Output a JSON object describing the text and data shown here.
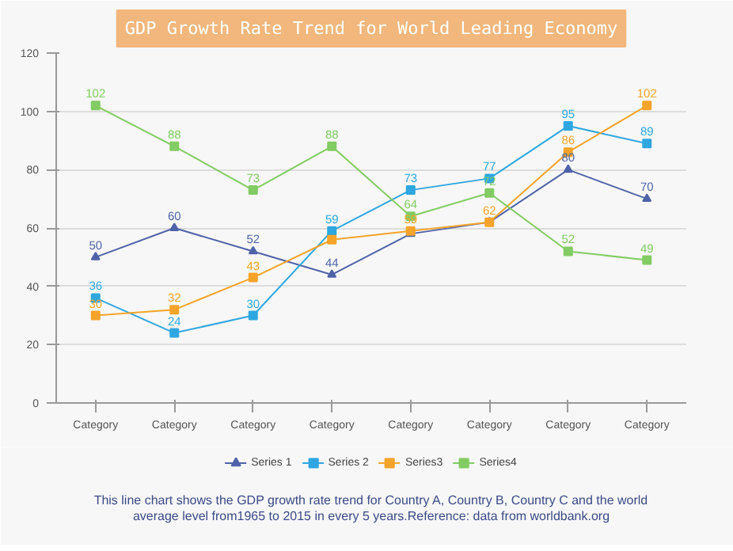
{
  "chart_data": {
    "type": "line",
    "title": "GDP Growth Rate Trend for World Leading Economy",
    "categories": [
      "Category",
      "Category",
      "Category",
      "Category",
      "Category",
      "Category",
      "Category",
      "Category"
    ],
    "series": [
      {
        "name": "Series 1",
        "color": "#4f63a8",
        "marker": "triangle",
        "values": [
          50,
          60,
          52,
          44,
          58,
          62,
          80,
          70
        ],
        "value_labels": [
          "50",
          "60",
          "52",
          "44",
          null,
          null,
          "80",
          "70"
        ]
      },
      {
        "name": "Series 2",
        "color": "#2ea7e0",
        "marker": "square",
        "values": [
          36,
          24,
          30,
          59,
          73,
          77,
          95,
          89
        ],
        "value_labels": [
          "36",
          "24",
          "30",
          "59",
          "73",
          "77",
          "95",
          "89"
        ]
      },
      {
        "name": "Series3",
        "color": "#f5a42a",
        "marker": "square",
        "values": [
          30,
          32,
          43,
          56,
          59,
          62,
          86,
          102
        ],
        "value_labels": [
          "30",
          "32",
          "43",
          null,
          "59",
          "62",
          "86",
          "102"
        ]
      },
      {
        "name": "Series4",
        "color": "#82cc63",
        "marker": "square",
        "values": [
          102,
          88,
          73,
          88,
          64,
          72,
          52,
          49
        ],
        "value_labels": [
          "102",
          "88",
          "73",
          "88",
          "64",
          "72",
          "52",
          "49"
        ]
      }
    ],
    "ylim": [
      0,
      120
    ],
    "yticks": [
      0,
      20,
      40,
      60,
      80,
      100,
      120
    ],
    "grid": "y",
    "legend": "bottom",
    "annotations": [
      "This line chart shows the GDP growth rate trend for Country A, Country B, Country C and the world average level from1965 to 2015 in every 5 years.Reference: data from worldbank.org"
    ]
  }
}
